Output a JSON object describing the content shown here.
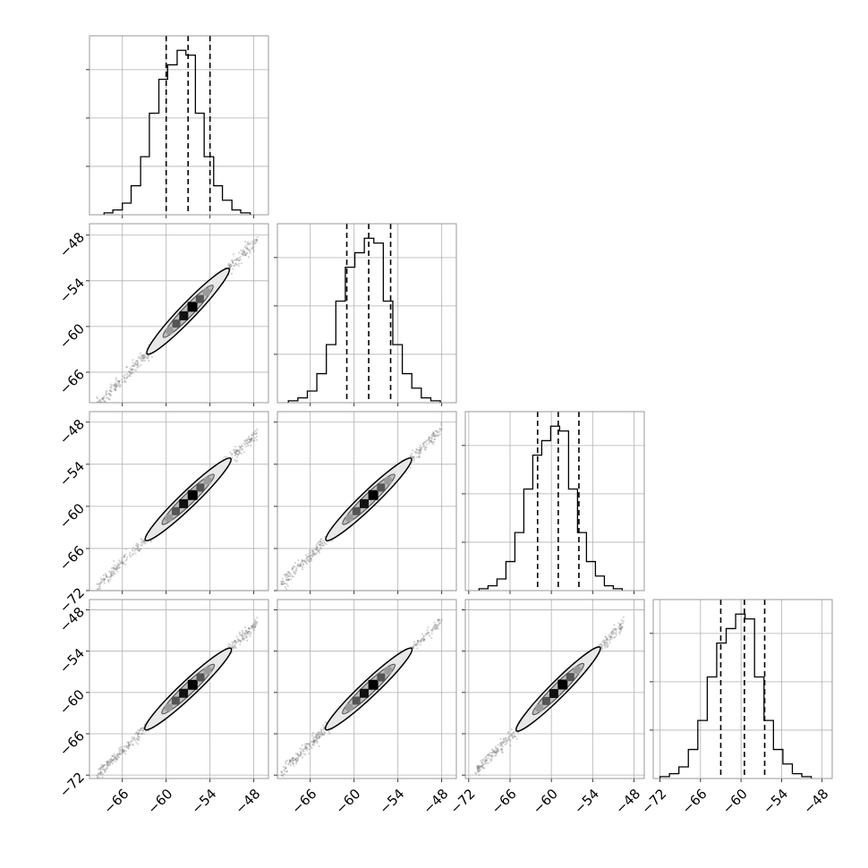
{
  "chart_data": {
    "type": "corner",
    "n_params": 4,
    "parameters": [
      "",
      "",
      "",
      ""
    ],
    "grid": true,
    "colors": {
      "line": "#000000",
      "grid": "#b0b0b0",
      "frame": "#808080",
      "scatter": "#808080",
      "contour_fill": "#e8e8e8"
    },
    "x_ranges": [
      [
        -70.5,
        -46
      ],
      [
        -70.5,
        -46
      ],
      [
        -72.5,
        -46.5
      ],
      [
        -73,
        -46.5
      ]
    ],
    "y_ranges_2d": [
      null,
      [
        -70,
        -46.5
      ],
      [
        -72,
        -46.5
      ],
      [
        -72.5,
        -46.5
      ]
    ],
    "x_ticks": [
      [
        -66,
        -60,
        -54,
        -48
      ],
      [
        -66,
        -60,
        -54,
        -48
      ],
      [
        -72,
        -66,
        -60,
        -54,
        -48
      ],
      [
        -72,
        -66,
        -60,
        -54,
        -48
      ]
    ],
    "y_ticks": [
      null,
      [
        -66,
        -60,
        -54,
        -48
      ],
      [
        -72,
        -66,
        -60,
        -54,
        -48
      ],
      [
        -72,
        -66,
        -60,
        -54,
        -48
      ]
    ],
    "histograms": [
      {
        "bin_edges": [
          -68.5,
          -67.3,
          -66.0,
          -64.8,
          -63.5,
          -62.3,
          -61.0,
          -59.8,
          -58.5,
          -57.3,
          -56.0,
          -54.8,
          -53.5,
          -52.3,
          -51.0,
          -49.8,
          -48.5
        ],
        "counts": [
          2,
          5,
          12,
          30,
          60,
          105,
          140,
          155,
          170,
          165,
          105,
          60,
          30,
          15,
          5,
          2
        ],
        "ymax": 185,
        "y_ticks": [
          50,
          100,
          150
        ],
        "quantiles": [
          -60.0,
          -57.0,
          -54.0
        ]
      },
      {
        "bin_edges": [
          -69.0,
          -67.7,
          -66.4,
          -65.1,
          -63.8,
          -62.5,
          -61.2,
          -59.9,
          -58.6,
          -57.3,
          -56.0,
          -54.7,
          -53.4,
          -52.1,
          -50.8,
          -49.5,
          -48.2
        ],
        "counts": [
          2,
          5,
          12,
          30,
          60,
          105,
          140,
          155,
          170,
          165,
          105,
          60,
          30,
          15,
          5,
          2
        ],
        "ymax": 185,
        "y_ticks": [
          50,
          100,
          150
        ],
        "quantiles": [
          -61.0,
          -58.0,
          -55.0
        ]
      },
      {
        "bin_edges": [
          -70.5,
          -69.2,
          -67.9,
          -66.6,
          -65.3,
          -64.0,
          -62.7,
          -61.4,
          -60.1,
          -58.8,
          -57.5,
          -56.2,
          -54.9,
          -53.6,
          -52.3,
          -51.0,
          -49.7
        ],
        "counts": [
          2,
          5,
          12,
          30,
          60,
          105,
          140,
          155,
          170,
          165,
          105,
          60,
          30,
          15,
          5,
          2
        ],
        "ymax": 185,
        "y_ticks": [
          50,
          100,
          150
        ],
        "quantiles": [
          -62.0,
          -59.0,
          -56.0
        ]
      },
      {
        "bin_edges": [
          -72.0,
          -70.6,
          -69.2,
          -67.8,
          -66.4,
          -65.0,
          -63.6,
          -62.2,
          -60.8,
          -59.4,
          -58.0,
          -56.6,
          -55.2,
          -53.8,
          -52.4,
          -51.0,
          -49.6
        ],
        "counts": [
          2,
          5,
          12,
          30,
          60,
          105,
          140,
          155,
          170,
          165,
          105,
          60,
          30,
          15,
          5,
          2
        ],
        "ymax": 185,
        "y_ticks": [
          50,
          100,
          150
        ],
        "quantiles": [
          -63.0,
          -59.5,
          -56.5
        ]
      }
    ],
    "pairs": [
      {
        "row": 1,
        "col": 0,
        "center": [
          -57,
          -58
        ],
        "range_x": [
          -69.5,
          -47.5
        ]
      },
      {
        "row": 2,
        "col": 0,
        "center": [
          -57,
          -59
        ],
        "range_x": [
          -69.5,
          -47.5
        ]
      },
      {
        "row": 2,
        "col": 1,
        "center": [
          -58,
          -59
        ],
        "range_x": [
          -70,
          -48
        ]
      },
      {
        "row": 3,
        "col": 0,
        "center": [
          -57,
          -59.5
        ],
        "range_x": [
          -69.5,
          -47.5
        ]
      },
      {
        "row": 3,
        "col": 1,
        "center": [
          -58,
          -59.5
        ],
        "range_x": [
          -70,
          -48
        ]
      },
      {
        "row": 3,
        "col": 2,
        "center": [
          -59,
          -59.5
        ],
        "range_x": [
          -71,
          -49.5
        ]
      }
    ]
  }
}
